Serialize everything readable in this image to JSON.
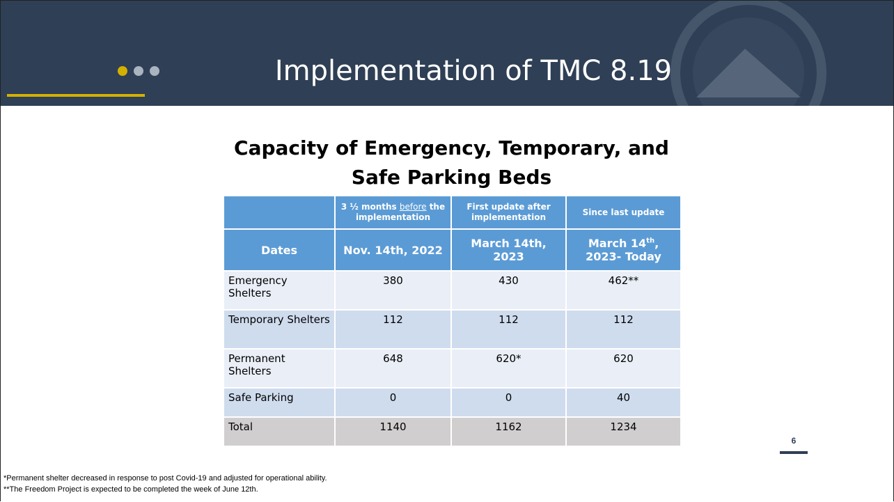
{
  "header": {
    "title": "Implementation of TMC 8.19"
  },
  "table": {
    "title": "Capacity of Emergency, Temporary, and Safe Parking Beds",
    "notes": [
      [
        "3 ½ months ",
        "before",
        " the implementation"
      ],
      [
        "First update after implementation"
      ],
      [
        "Since last update"
      ]
    ],
    "columns": [
      "Dates",
      "Nov. 14th, 2022",
      "March 14th, 2023",
      [
        "March 14",
        "th",
        ", 2023- Today"
      ]
    ],
    "rows": [
      [
        "Emergency Shelters",
        "380",
        "430",
        "462**"
      ],
      [
        "Temporary Shelters",
        "112",
        "112",
        "112"
      ],
      [
        "Permanent Shelters",
        "648",
        "620*",
        "620"
      ],
      [
        "Safe Parking",
        "0",
        "0",
        "40"
      ]
    ],
    "total": [
      "Total",
      "1140",
      "1162",
      "1234"
    ]
  },
  "page_number": "6",
  "footnotes": [
    "*Permanent shelter decreased in response to post Covid-19 and adjusted for operational ability.",
    "**The Freedom Project is expected to be completed the week of June 12th."
  ]
}
